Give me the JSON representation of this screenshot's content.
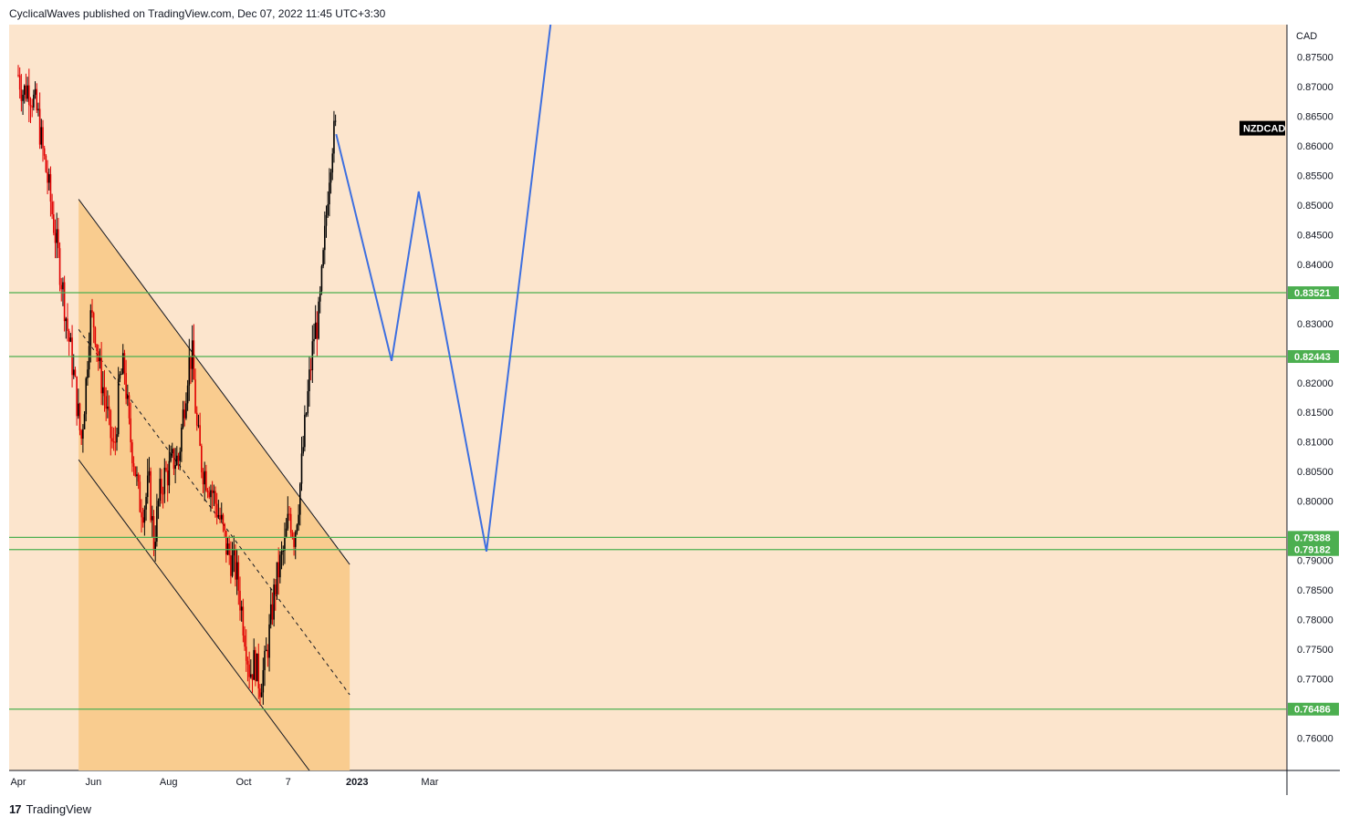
{
  "header": {
    "publisher_line": "CyclicalWaves published on TradingView.com, Dec 07, 2022 11:45 UTC+3:30"
  },
  "footer": {
    "brand": "TradingView",
    "logo_glyph": "17"
  },
  "colors": {
    "background": "#fce5cd",
    "channel_fill": "#f9cc8f",
    "candle_up": "#000000",
    "candle_down": "#e00000",
    "level_line": "#4caf50",
    "projection": "#3d6fe0",
    "symbol_tag": "#000000"
  },
  "chart_data": {
    "type": "candlestick",
    "symbol": "NZDCAD",
    "currency": "CAD",
    "y_range": [
      0.7545,
      0.8805
    ],
    "y_ticks": [
      "0.76000",
      "0.76500",
      "0.77000",
      "0.77500",
      "0.78000",
      "0.78500",
      "0.79000",
      "0.79500",
      "0.80000",
      "0.80500",
      "0.81000",
      "0.81500",
      "0.82000",
      "0.82500",
      "0.83000",
      "0.83500",
      "0.84000",
      "0.84500",
      "0.85000",
      "0.85500",
      "0.86000",
      "0.86500",
      "0.87000",
      "0.87500"
    ],
    "x_ticks": [
      "Apr",
      "Jun",
      "Aug",
      "Oct",
      "7",
      "2023",
      "Mar"
    ],
    "x_tick_days": [
      0,
      61,
      122,
      183,
      219,
      275,
      334
    ],
    "x_axis_start": "2022-04-01",
    "levels": [
      {
        "label": "0.83521",
        "value": 0.83521
      },
      {
        "label": "0.82443",
        "value": 0.82443
      },
      {
        "label": "0.79388",
        "value": 0.79388
      },
      {
        "label": "0.79182",
        "value": 0.79182
      },
      {
        "label": "0.76486",
        "value": 0.76486
      }
    ],
    "channel": {
      "start_day": 49,
      "end_day": 269,
      "upper": [
        0.851,
        0.7893
      ],
      "lower": [
        0.807,
        0.7453
      ],
      "mid": [
        0.829,
        0.7673
      ]
    },
    "price_path": [
      [
        0,
        0.872
      ],
      [
        4,
        0.869
      ],
      [
        8,
        0.87
      ],
      [
        12,
        0.868
      ],
      [
        16,
        0.865
      ],
      [
        20,
        0.859
      ],
      [
        24,
        0.854
      ],
      [
        28,
        0.848
      ],
      [
        32,
        0.842
      ],
      [
        36,
        0.836
      ],
      [
        40,
        0.829
      ],
      [
        44,
        0.823
      ],
      [
        48,
        0.816
      ],
      [
        51,
        0.81
      ],
      [
        55,
        0.82
      ],
      [
        58,
        0.831
      ],
      [
        62,
        0.83
      ],
      [
        66,
        0.822
      ],
      [
        70,
        0.818
      ],
      [
        74,
        0.812
      ],
      [
        78,
        0.808
      ],
      [
        82,
        0.82
      ],
      [
        86,
        0.823
      ],
      [
        90,
        0.812
      ],
      [
        94,
        0.807
      ],
      [
        98,
        0.8
      ],
      [
        102,
        0.799
      ],
      [
        106,
        0.803
      ],
      [
        110,
        0.793
      ],
      [
        114,
        0.8
      ],
      [
        118,
        0.804
      ],
      [
        122,
        0.805
      ],
      [
        126,
        0.807
      ],
      [
        130,
        0.807
      ],
      [
        134,
        0.815
      ],
      [
        138,
        0.823
      ],
      [
        141,
        0.825
      ],
      [
        145,
        0.812
      ],
      [
        149,
        0.806
      ],
      [
        153,
        0.804
      ],
      [
        157,
        0.802
      ],
      [
        161,
        0.799
      ],
      [
        165,
        0.796
      ],
      [
        169,
        0.792
      ],
      [
        173,
        0.79
      ],
      [
        177,
        0.788
      ],
      [
        181,
        0.782
      ],
      [
        185,
        0.776
      ],
      [
        188,
        0.771
      ],
      [
        192,
        0.773
      ],
      [
        196,
        0.769
      ],
      [
        200,
        0.772
      ],
      [
        204,
        0.778
      ],
      [
        208,
        0.785
      ],
      [
        212,
        0.789
      ],
      [
        216,
        0.792
      ],
      [
        220,
        0.798
      ],
      [
        224,
        0.794
      ],
      [
        228,
        0.801
      ],
      [
        232,
        0.811
      ],
      [
        236,
        0.82
      ],
      [
        240,
        0.828
      ],
      [
        244,
        0.831
      ],
      [
        248,
        0.842
      ],
      [
        252,
        0.855
      ],
      [
        255,
        0.861
      ],
      [
        258,
        0.863
      ]
    ],
    "projection": [
      {
        "day": 258,
        "value": 0.862
      },
      {
        "day": 303,
        "value": 0.8237
      },
      {
        "day": 325,
        "value": 0.8523
      },
      {
        "day": 380,
        "value": 0.7915
      },
      {
        "day": 432,
        "value": 0.8805
      }
    ]
  }
}
